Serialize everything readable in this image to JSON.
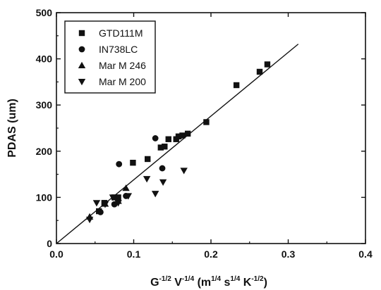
{
  "chart_data": {
    "type": "scatter",
    "title": "",
    "xlabel": {
      "base": "G",
      "g_exp": "-1/2",
      "v_letter": "V",
      "v_exp": "-1/4",
      "units_open": "(m",
      "m_exp": "1/4",
      "s_letter": "s",
      "s_exp": "1/4",
      "k_letter": "K",
      "k_exp": "-1/2",
      "units_close": ")"
    },
    "ylabel": "PDAS (um)",
    "xlim": [
      0.0,
      0.4
    ],
    "ylim": [
      0,
      500
    ],
    "xticks": [
      0.0,
      0.1,
      0.2,
      0.3,
      0.4
    ],
    "xtick_labels": [
      "0.0",
      "0.1",
      "0.2",
      "0.3",
      "0.4"
    ],
    "yticks": [
      0,
      100,
      200,
      300,
      400,
      500
    ],
    "ytick_labels": [
      "0",
      "100",
      "200",
      "300",
      "400",
      "500"
    ],
    "grid": false,
    "legend_position": "top-left",
    "fit_line": {
      "x": [
        0.0,
        0.313
      ],
      "y": [
        0,
        432
      ]
    },
    "series": [
      {
        "name": "GTD111M",
        "marker": "square",
        "points": [
          [
            0.055,
            70
          ],
          [
            0.062,
            88
          ],
          [
            0.075,
            100
          ],
          [
            0.08,
            100
          ],
          [
            0.099,
            175
          ],
          [
            0.118,
            183
          ],
          [
            0.135,
            208
          ],
          [
            0.14,
            210
          ],
          [
            0.145,
            226
          ],
          [
            0.155,
            226
          ],
          [
            0.158,
            232
          ],
          [
            0.163,
            234
          ],
          [
            0.17,
            238
          ],
          [
            0.194,
            263
          ],
          [
            0.233,
            343
          ],
          [
            0.263,
            372
          ],
          [
            0.273,
            388
          ]
        ]
      },
      {
        "name": "IN738LC",
        "marker": "circle",
        "points": [
          [
            0.057,
            68
          ],
          [
            0.075,
            85
          ],
          [
            0.081,
            172
          ],
          [
            0.09,
            103
          ],
          [
            0.128,
            228
          ],
          [
            0.137,
            163
          ]
        ]
      },
      {
        "name": "Mar M 246",
        "marker": "triangle-up",
        "points": [
          [
            0.043,
            58
          ],
          [
            0.063,
            86
          ],
          [
            0.08,
            92
          ],
          [
            0.09,
            120
          ]
        ]
      },
      {
        "name": "Mar M 200",
        "marker": "triangle-down",
        "points": [
          [
            0.043,
            52
          ],
          [
            0.052,
            88
          ],
          [
            0.063,
            85
          ],
          [
            0.073,
            100
          ],
          [
            0.08,
            88
          ],
          [
            0.093,
            103
          ],
          [
            0.117,
            140
          ],
          [
            0.128,
            108
          ],
          [
            0.138,
            133
          ],
          [
            0.165,
            158
          ]
        ]
      }
    ]
  }
}
